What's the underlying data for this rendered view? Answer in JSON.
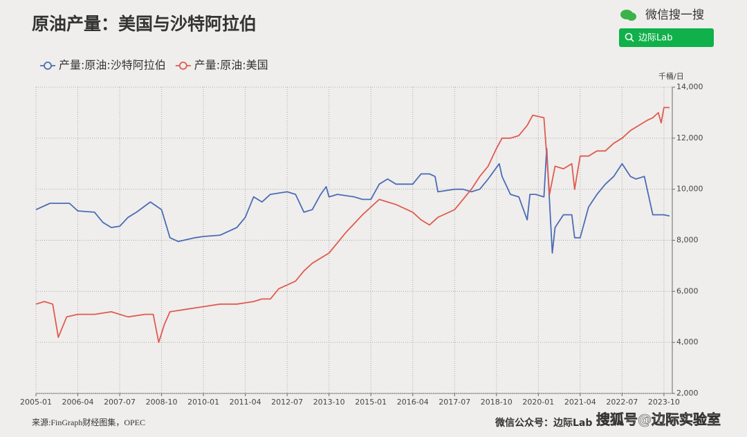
{
  "chart_data": {
    "type": "line",
    "title": "原油产量：美国与沙特阿拉伯",
    "y_unit": "千桶/日",
    "source": "来源:FinGraph财经图集，OPEC",
    "footer": "微信公众号：边际Lab",
    "watermark": "搜狐号@边际实验室",
    "search_brand": "微信搜一搜",
    "search_query": "边际Lab",
    "xlim": [
      "2005-01",
      "2024-01"
    ],
    "xticks": [
      "2005-01",
      "2006-04",
      "2007-07",
      "2008-10",
      "2010-01",
      "2011-04",
      "2012-07",
      "2013-10",
      "2015-01",
      "2016-04",
      "2017-07",
      "2018-10",
      "2020-01",
      "2021-04",
      "2022-07",
      "2023-10"
    ],
    "ylim": [
      2000,
      14000
    ],
    "yticks": [
      {
        "value": 2000,
        "label": "2,000"
      },
      {
        "value": 4000,
        "label": "4,000"
      },
      {
        "value": 6000,
        "label": "6,000"
      },
      {
        "value": 8000,
        "label": "8,000"
      },
      {
        "value": 10000,
        "label": "10,000"
      },
      {
        "value": 12000,
        "label": "12,000"
      },
      {
        "value": 14000,
        "label": "14,000"
      }
    ],
    "grid": true,
    "legend": "top-left",
    "series": [
      {
        "name": "产量:原油:沙特阿拉伯",
        "color": "#4a6bb5",
        "x": [
          "2005-01",
          "2005-06",
          "2006-01",
          "2006-04",
          "2006-10",
          "2007-01",
          "2007-04",
          "2007-07",
          "2007-10",
          "2008-01",
          "2008-06",
          "2008-10",
          "2009-01",
          "2009-04",
          "2009-10",
          "2010-01",
          "2010-07",
          "2011-01",
          "2011-04",
          "2011-07",
          "2011-10",
          "2012-01",
          "2012-07",
          "2012-10",
          "2013-01",
          "2013-04",
          "2013-07",
          "2013-09",
          "2013-10",
          "2014-01",
          "2014-07",
          "2014-10",
          "2015-01",
          "2015-04",
          "2015-07",
          "2015-10",
          "2016-04",
          "2016-07",
          "2016-10",
          "2016-12",
          "2017-01",
          "2017-07",
          "2017-10",
          "2018-01",
          "2018-04",
          "2018-07",
          "2018-11",
          "2018-12",
          "2019-03",
          "2019-06",
          "2019-09",
          "2019-10",
          "2019-12",
          "2020-03",
          "2020-04",
          "2020-06",
          "2020-07",
          "2020-10",
          "2021-01",
          "2021-02",
          "2021-04",
          "2021-07",
          "2021-10",
          "2022-01",
          "2022-04",
          "2022-07",
          "2022-10",
          "2022-12",
          "2023-03",
          "2023-06",
          "2023-07",
          "2023-10",
          "2023-12"
        ],
        "values": [
          9200,
          9450,
          9450,
          9150,
          9100,
          8700,
          8500,
          8550,
          8900,
          9100,
          9500,
          9200,
          8100,
          7950,
          8100,
          8150,
          8200,
          8500,
          8900,
          9700,
          9500,
          9800,
          9900,
          9800,
          9100,
          9200,
          9800,
          10100,
          9700,
          9800,
          9700,
          9600,
          9600,
          10200,
          10400,
          10200,
          10200,
          10600,
          10600,
          10500,
          9900,
          10000,
          10000,
          9900,
          10000,
          10400,
          11000,
          10500,
          9800,
          9700,
          8800,
          9800,
          9800,
          9700,
          11600,
          7500,
          8500,
          9000,
          9000,
          8100,
          8100,
          9300,
          9800,
          10200,
          10500,
          11000,
          10500,
          10400,
          10500,
          9000,
          9000,
          9000,
          8950
        ]
      },
      {
        "name": "产量:原油:美国",
        "color": "#e05a4f",
        "x": [
          "2005-01",
          "2005-04",
          "2005-07",
          "2005-09",
          "2005-12",
          "2006-04",
          "2006-10",
          "2007-04",
          "2007-10",
          "2008-04",
          "2008-07",
          "2008-09",
          "2008-11",
          "2009-01",
          "2009-07",
          "2010-01",
          "2010-07",
          "2011-01",
          "2011-07",
          "2011-10",
          "2012-01",
          "2012-04",
          "2012-10",
          "2013-01",
          "2013-04",
          "2013-10",
          "2014-04",
          "2014-10",
          "2015-01",
          "2015-04",
          "2015-07",
          "2015-10",
          "2016-04",
          "2016-07",
          "2016-10",
          "2017-01",
          "2017-07",
          "2017-10",
          "2018-01",
          "2018-04",
          "2018-07",
          "2018-10",
          "2018-12",
          "2019-03",
          "2019-06",
          "2019-09",
          "2019-11",
          "2020-03",
          "2020-05",
          "2020-07",
          "2020-10",
          "2021-01",
          "2021-02",
          "2021-04",
          "2021-07",
          "2021-10",
          "2022-01",
          "2022-04",
          "2022-07",
          "2022-10",
          "2023-01",
          "2023-04",
          "2023-06",
          "2023-08",
          "2023-09",
          "2023-10",
          "2023-12"
        ],
        "values": [
          5500,
          5600,
          5500,
          4200,
          5000,
          5100,
          5100,
          5200,
          5000,
          5100,
          5100,
          4000,
          4700,
          5200,
          5300,
          5400,
          5500,
          5500,
          5600,
          5700,
          5700,
          6100,
          6400,
          6800,
          7100,
          7500,
          8300,
          9000,
          9300,
          9600,
          9500,
          9400,
          9100,
          8800,
          8600,
          8900,
          9200,
          9600,
          10000,
          10500,
          10900,
          11600,
          12000,
          12000,
          12100,
          12500,
          12900,
          12800,
          9800,
          10900,
          10800,
          11000,
          10000,
          11300,
          11300,
          11500,
          11500,
          11800,
          12000,
          12300,
          12500,
          12700,
          12800,
          13000,
          12600,
          13200,
          13200
        ]
      }
    ]
  }
}
